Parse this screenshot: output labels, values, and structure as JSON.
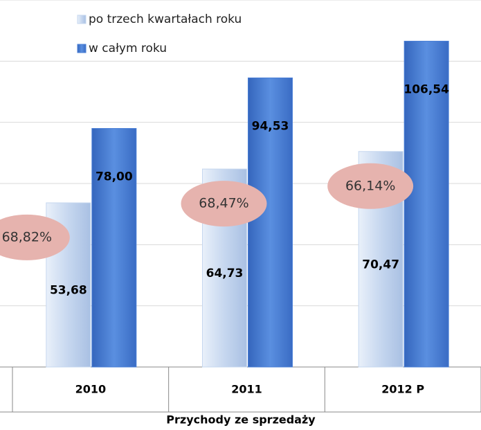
{
  "chart_data": {
    "type": "bar",
    "x_label": "Przychody ze sprzedaży",
    "categories": [
      "2010",
      "2011",
      "2012 P"
    ],
    "series": [
      {
        "name": "po trzech kwartałach roku",
        "color": "#c6d7ef",
        "values": [
          53.68,
          64.73,
          70.47
        ],
        "value_labels": [
          "53,68",
          "64,73",
          "70,47"
        ]
      },
      {
        "name": "w całym roku",
        "color": "#4a7fd6",
        "values": [
          78.0,
          94.53,
          106.54
        ],
        "value_labels": [
          "78,00",
          "94,53",
          "106,54"
        ]
      }
    ],
    "annotations": [
      "68,82%",
      "68,47%",
      "66,14%"
    ],
    "ylim": [
      0,
      120
    ],
    "yticks": [
      0,
      20,
      40,
      60,
      80,
      100,
      120
    ],
    "grid": true
  }
}
